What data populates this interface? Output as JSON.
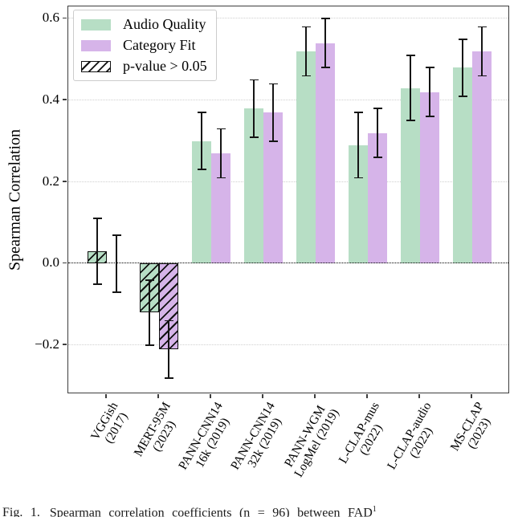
{
  "figure": {
    "caption": {
      "prefix": "Fig. 1.",
      "text": "Spearman correlation coefficients (n = 96) between FAD",
      "superscript": "1"
    }
  },
  "chart_data": {
    "type": "bar",
    "title": "",
    "xlabel": "",
    "ylabel": "Spearman Correlation",
    "ylim": [
      -0.32,
      0.63
    ],
    "grid": "horizontal-dotted",
    "zero_line": "black-dotted",
    "legend_position": "upper-left",
    "yticks": [
      {
        "value": 0.6,
        "label": "0.6"
      },
      {
        "value": 0.4,
        "label": "0.4"
      },
      {
        "value": 0.2,
        "label": "0.2"
      },
      {
        "value": 0.0,
        "label": "0.0"
      },
      {
        "value": -0.2,
        "label": "−0.2"
      }
    ],
    "categories": [
      [
        "VGGish",
        "(2017)"
      ],
      [
        "MERT-95M",
        "(2023)"
      ],
      [
        "PANN-CNN14",
        "16k (2019)"
      ],
      [
        "PANN-CNN14",
        "32k (2019)"
      ],
      [
        "PANN-WGM",
        "LogMel (2019)"
      ],
      [
        "L-CLAP-mus",
        "(2022)"
      ],
      [
        "L-CLAP-audio",
        "(2022)"
      ],
      [
        "MS-CLAP",
        "(2023)"
      ]
    ],
    "series": [
      {
        "name": "Audio Quality",
        "color": "#b7dec5",
        "values": [
          0.03,
          -0.12,
          0.3,
          0.38,
          0.52,
          0.29,
          0.43,
          0.48
        ],
        "errors": [
          0.08,
          0.08,
          0.07,
          0.07,
          0.06,
          0.08,
          0.08,
          0.07
        ],
        "hatched": [
          true,
          true,
          false,
          false,
          false,
          false,
          false,
          false
        ]
      },
      {
        "name": "Category Fit",
        "color": "#d6b4e9",
        "values": [
          0.0,
          -0.21,
          0.27,
          0.37,
          0.54,
          0.32,
          0.42,
          0.52
        ],
        "errors": [
          0.07,
          0.07,
          0.06,
          0.07,
          0.06,
          0.06,
          0.06,
          0.06
        ],
        "hatched": [
          true,
          true,
          false,
          false,
          false,
          false,
          false,
          false
        ]
      }
    ],
    "legend": [
      {
        "label": "Audio Quality",
        "swatch": "#b7dec5",
        "hatched": false
      },
      {
        "label": "Category Fit",
        "swatch": "#d6b4e9",
        "hatched": false
      },
      {
        "label": "p-value > 0.05",
        "swatch": "#ffffff",
        "hatched": true
      }
    ]
  },
  "colors": {
    "grid": "#cfcfcf",
    "spine": "#3d3d3d",
    "error_bar": "#151515",
    "hatch": "#111111"
  }
}
